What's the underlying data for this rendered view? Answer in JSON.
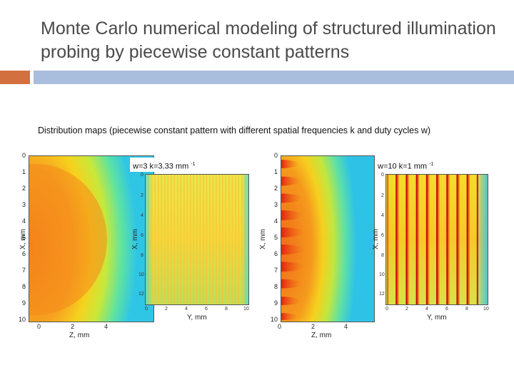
{
  "slide": {
    "title": "Monte Carlo numerical modeling of structured illumination probing by piecewise constant patterns",
    "subtitle": "Distribution maps (piecewise constant pattern with  different spatial frequencies k and duty cycles w)"
  },
  "panels": [
    {
      "caption_main": "w=3   k=3.33 mm",
      "caption_sup": "-1",
      "big_xlabel": "Z, mm",
      "big_ylabel": "X, mm",
      "small_xlabel": "Y, mm",
      "small_ylabel": "X, mm",
      "big_yticks": [
        "0",
        "1",
        "2",
        "3",
        "4",
        "5",
        "6",
        "7",
        "8",
        "9",
        "10"
      ],
      "big_xticks": [
        "0",
        "2",
        "4"
      ],
      "small_yticks": [
        "0",
        "2",
        "4",
        "6",
        "8",
        "10",
        "12"
      ],
      "small_xticks": [
        "0",
        "2",
        "4",
        "6",
        "8",
        "10"
      ]
    },
    {
      "caption_main": "w=10   k=1 mm",
      "caption_sup": "-1",
      "big_xlabel": "Z, mm",
      "big_ylabel": "X, mm",
      "small_xlabel": "Y, mm",
      "small_ylabel": "X, mm",
      "big_yticks": [
        "0",
        "1",
        "2",
        "3",
        "4",
        "5",
        "6",
        "7",
        "8",
        "9",
        "10"
      ],
      "big_xticks": [
        "0",
        "2",
        "4"
      ],
      "small_yticks": [
        "0",
        "2",
        "4",
        "6",
        "8",
        "10",
        "12"
      ],
      "small_xticks": [
        "0",
        "2",
        "4",
        "6",
        "8",
        "10"
      ]
    }
  ],
  "colors": {
    "accent_orange": "#d2703f",
    "accent_blue": "#a9bddc"
  }
}
